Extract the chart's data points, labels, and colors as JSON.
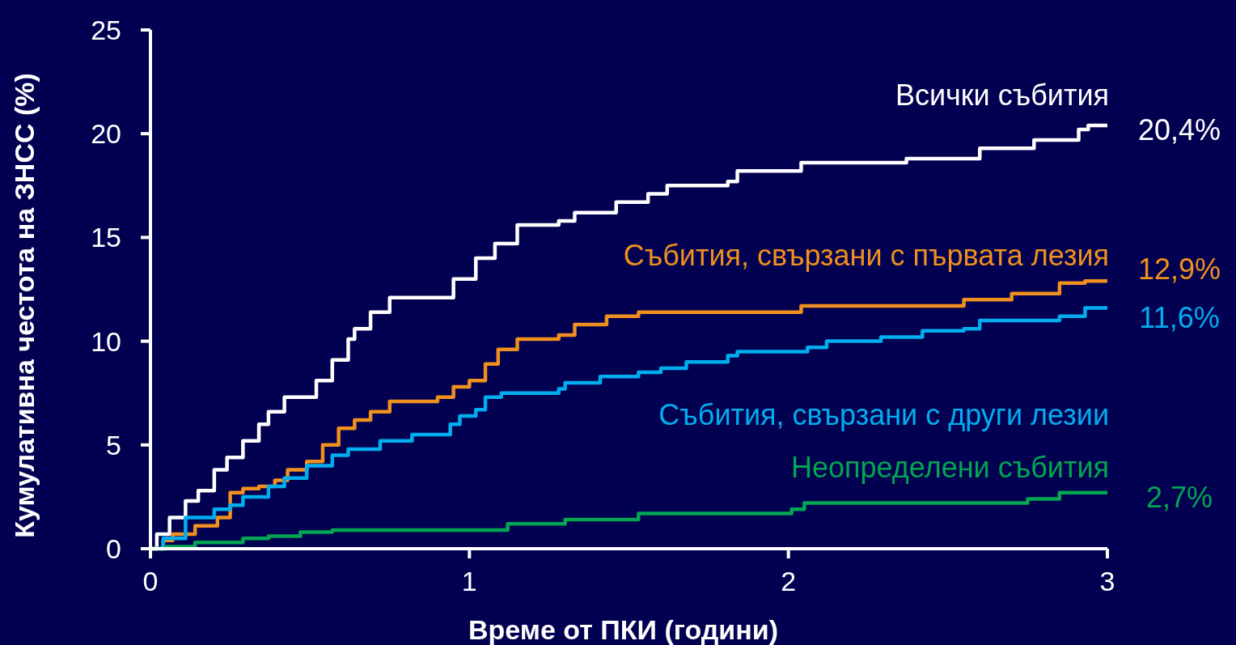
{
  "chart_data": {
    "type": "step",
    "xlabel": "Време от ПКИ (години)",
    "ylabel": "Кумулативна честота на ЗНСС (%)",
    "xlim": [
      0,
      3
    ],
    "xticks": [
      0,
      1,
      2,
      3
    ],
    "ylim": [
      0,
      25
    ],
    "yticks": [
      0,
      5,
      10,
      15,
      20,
      25
    ],
    "series": [
      {
        "name": "Всички събития",
        "color": "#ffffff",
        "x": [
          0,
          0.02,
          0.06,
          0.11,
          0.15,
          0.2,
          0.24,
          0.29,
          0.34,
          0.37,
          0.42,
          0.48,
          0.52,
          0.57,
          0.62,
          0.64,
          0.69,
          0.75,
          0.9,
          0.95,
          1.02,
          1.08,
          1.15,
          1.28,
          1.33,
          1.46,
          1.56,
          1.62,
          1.81,
          1.84,
          2.04,
          2.37,
          2.6,
          2.77,
          2.91,
          2.94,
          3
        ],
        "values": [
          0,
          0.7,
          1.5,
          2.3,
          2.8,
          3.8,
          4.4,
          5.2,
          6.0,
          6.6,
          7.3,
          7.3,
          8.1,
          9.1,
          10.1,
          10.6,
          11.4,
          12.1,
          12.1,
          13.0,
          14.0,
          14.7,
          15.6,
          15.8,
          16.2,
          16.7,
          17.1,
          17.5,
          17.7,
          18.2,
          18.6,
          18.8,
          19.3,
          19.7,
          20.2,
          20.4,
          20.4
        ],
        "value_labels": [
          null,
          null,
          null,
          null,
          null,
          null,
          null,
          null,
          null,
          null,
          null,
          null,
          null,
          null,
          null,
          null,
          null,
          null,
          null,
          null,
          null,
          null,
          null,
          null,
          null,
          null,
          null,
          null,
          null,
          null,
          null,
          null,
          null,
          null,
          null,
          null,
          "20,4%"
        ]
      },
      {
        "name": "Събития, свързани с първата лезия",
        "color": "#f0901e",
        "x": [
          0,
          0.04,
          0.07,
          0.14,
          0.21,
          0.25,
          0.29,
          0.34,
          0.39,
          0.43,
          0.49,
          0.54,
          0.59,
          0.64,
          0.69,
          0.75,
          0.9,
          0.95,
          1.0,
          1.05,
          1.09,
          1.15,
          1.28,
          1.33,
          1.43,
          1.53,
          2.04,
          2.55,
          2.7,
          2.85,
          2.93,
          3
        ],
        "values": [
          0,
          0.4,
          0.7,
          1.1,
          1.5,
          2.7,
          2.9,
          3.0,
          3.3,
          3.8,
          4.2,
          5.0,
          5.8,
          6.2,
          6.6,
          7.1,
          7.3,
          7.8,
          8.1,
          8.9,
          9.6,
          10.1,
          10.3,
          10.8,
          11.2,
          11.4,
          11.7,
          12.0,
          12.3,
          12.8,
          12.9,
          12.9
        ],
        "value_labels": [
          null,
          null,
          null,
          null,
          null,
          null,
          null,
          null,
          null,
          null,
          null,
          null,
          null,
          null,
          null,
          null,
          null,
          null,
          null,
          null,
          null,
          null,
          null,
          null,
          null,
          null,
          null,
          null,
          null,
          null,
          null,
          "12,9%"
        ]
      },
      {
        "name": "Събития, свързани с други лезии",
        "color": "#00aeef",
        "x": [
          0,
          0.04,
          0.11,
          0.2,
          0.25,
          0.29,
          0.37,
          0.42,
          0.49,
          0.57,
          0.62,
          0.72,
          0.82,
          0.94,
          0.97,
          1.02,
          1.05,
          1.1,
          1.28,
          1.3,
          1.41,
          1.53,
          1.6,
          1.68,
          1.81,
          1.84,
          2.06,
          2.12,
          2.29,
          2.42,
          2.55,
          2.6,
          2.85,
          2.93,
          3
        ],
        "values": [
          0,
          0.5,
          1.5,
          1.9,
          2.1,
          2.5,
          3.0,
          3.4,
          4.0,
          4.5,
          4.8,
          5.2,
          5.5,
          6.0,
          6.4,
          6.7,
          7.3,
          7.5,
          7.7,
          8.0,
          8.3,
          8.5,
          8.7,
          9.0,
          9.3,
          9.5,
          9.7,
          10.0,
          10.2,
          10.5,
          10.6,
          11.0,
          11.2,
          11.6,
          11.6
        ],
        "value_labels": [
          null,
          null,
          null,
          null,
          null,
          null,
          null,
          null,
          null,
          null,
          null,
          null,
          null,
          null,
          null,
          null,
          null,
          null,
          null,
          null,
          null,
          null,
          null,
          null,
          null,
          null,
          null,
          null,
          null,
          null,
          null,
          null,
          null,
          null,
          "11,6%"
        ]
      },
      {
        "name": "Неопределени събития",
        "color": "#00a651",
        "x": [
          0,
          0.05,
          0.14,
          0.29,
          0.37,
          0.47,
          0.57,
          1.12,
          1.3,
          1.53,
          2.01,
          2.05,
          2.75,
          2.85,
          3
        ],
        "values": [
          0,
          0.1,
          0.3,
          0.5,
          0.6,
          0.8,
          0.9,
          1.2,
          1.4,
          1.7,
          1.9,
          2.2,
          2.4,
          2.7,
          2.7
        ],
        "value_labels": [
          null,
          null,
          null,
          null,
          null,
          null,
          null,
          null,
          null,
          null,
          null,
          null,
          null,
          null,
          "2,7%"
        ]
      }
    ]
  }
}
